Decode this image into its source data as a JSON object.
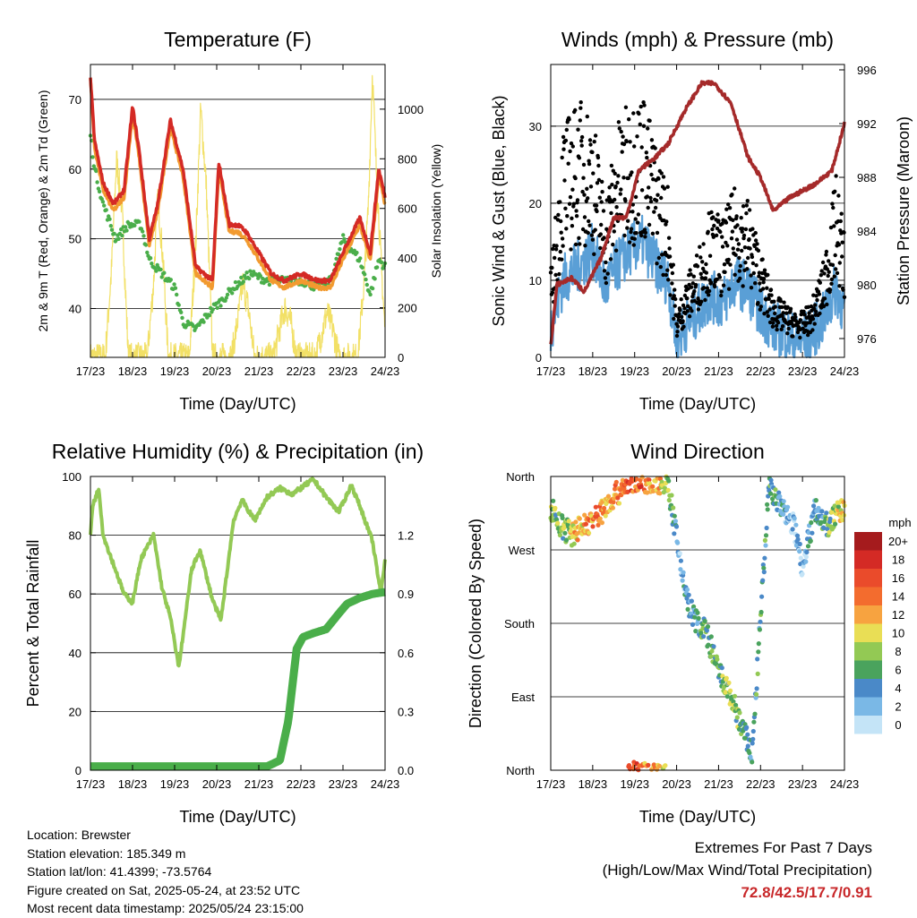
{
  "chart_data": [
    {
      "type": "line",
      "title": "Temperature (F)",
      "xlabel": "Time (Day/UTC)",
      "ylabel": "2m & 9m T (Red, Orange) & 2m Td (Green)",
      "y2label": "Solar Insolation (Yellow)",
      "x_ticks": [
        "17/23",
        "18/23",
        "19/23",
        "20/23",
        "21/23",
        "22/23",
        "23/23",
        "24/23"
      ],
      "y_ticks": [
        40,
        50,
        60,
        70
      ],
      "y2_ticks": [
        0,
        200,
        400,
        600,
        800,
        1000
      ],
      "ylim": [
        33,
        75
      ],
      "y2lim": [
        0,
        1180
      ],
      "colors": {
        "t2m": "#d42a25",
        "t9m": "#f29a2f",
        "td": "#4aae4a",
        "solar": "#f2e066"
      },
      "series": [
        {
          "name": "2m T",
          "x": [
            0,
            0.1,
            0.3,
            0.55,
            0.8,
            1.0,
            1.15,
            1.4,
            1.6,
            1.9,
            2.2,
            2.5,
            2.9,
            3.05,
            3.3,
            3.5,
            3.7,
            3.9,
            4.3,
            4.6,
            5.0,
            5.4,
            5.7,
            6.0,
            6.4,
            6.65,
            6.85,
            7.0
          ],
          "y": [
            73,
            64,
            58,
            55,
            57,
            69,
            63,
            50,
            55,
            67,
            60,
            46,
            44,
            61,
            52,
            52,
            51,
            49,
            45,
            44,
            45,
            44,
            44,
            48,
            53,
            48,
            60,
            56
          ]
        },
        {
          "name": "9m T",
          "x": [
            0,
            0.1,
            0.3,
            0.55,
            0.8,
            1.0,
            1.15,
            1.4,
            1.6,
            1.9,
            2.2,
            2.5,
            2.9,
            3.05,
            3.3,
            3.5,
            3.7,
            3.9,
            4.3,
            4.6,
            5.0,
            5.4,
            5.7,
            6.0,
            6.4,
            6.65,
            6.85,
            7.0
          ],
          "y": [
            73,
            63,
            57,
            54,
            56,
            68,
            62,
            49,
            54,
            66,
            59,
            45,
            43,
            60,
            51,
            51,
            50,
            48,
            44,
            43,
            44,
            43,
            43,
            47,
            52,
            47,
            59,
            55
          ]
        },
        {
          "name": "2m Td",
          "x": [
            0,
            0.1,
            0.3,
            0.6,
            0.9,
            1.2,
            1.4,
            1.7,
            2.0,
            2.2,
            2.5,
            2.9,
            3.1,
            3.4,
            3.6,
            3.8,
            4.2,
            4.5,
            5.0,
            5.4,
            5.7,
            6.0,
            6.4,
            6.65,
            6.85,
            7.0
          ],
          "y": [
            65,
            60,
            55,
            50,
            52,
            52,
            47,
            45,
            43,
            38,
            37,
            40,
            41,
            43,
            44,
            45,
            44,
            44,
            44,
            43,
            44,
            50,
            47,
            42,
            47,
            46
          ]
        },
        {
          "name": "Solar",
          "x": [
            0,
            0.35,
            0.5,
            0.62,
            0.75,
            0.9,
            1.35,
            1.5,
            1.6,
            1.72,
            1.85,
            2.35,
            2.5,
            2.62,
            2.75,
            2.9,
            3.35,
            3.5,
            3.62,
            3.75,
            3.9,
            4.35,
            4.5,
            4.62,
            4.75,
            4.9,
            5.35,
            5.5,
            5.62,
            5.75,
            5.9,
            6.35,
            6.5,
            6.6,
            6.7,
            6.78,
            6.9,
            7.0
          ],
          "y": [
            0,
            0,
            350,
            800,
            600,
            0,
            0,
            300,
            650,
            400,
            0,
            0,
            450,
            1000,
            700,
            0,
            0,
            150,
            300,
            200,
            0,
            0,
            120,
            200,
            150,
            0,
            0,
            100,
            180,
            120,
            0,
            0,
            300,
            600,
            1150,
            800,
            400,
            100
          ]
        }
      ]
    },
    {
      "type": "scatter",
      "title": "Winds (mph) & Pressure (mb)",
      "xlabel": "Time (Day/UTC)",
      "ylabel": "Sonic Wind & Gust (Blue, Black)",
      "y2label": "Station Pressure (Maroon)",
      "x_ticks": [
        "17/23",
        "18/23",
        "19/23",
        "20/23",
        "21/23",
        "22/23",
        "23/23",
        "24/23"
      ],
      "y_ticks": [
        0,
        10,
        20,
        30
      ],
      "y2_ticks": [
        976,
        980,
        984,
        988,
        992,
        996
      ],
      "ylim": [
        0,
        38
      ],
      "y2lim": [
        974.6,
        996.4
      ],
      "colors": {
        "wind": "#5a9fd6",
        "gust": "#000000",
        "pressure": "#a52a2a"
      },
      "series": [
        {
          "name": "Wind",
          "x": [
            0,
            0.3,
            0.7,
            1.0,
            1.3,
            1.6,
            1.9,
            2.2,
            2.5,
            2.8,
            3.0,
            3.2,
            3.5,
            3.8,
            4.1,
            4.4,
            4.7,
            5.0,
            5.3,
            5.6,
            5.9,
            6.2,
            6.5,
            6.8,
            7.0
          ],
          "y": [
            4,
            10,
            12,
            14,
            9,
            12,
            14,
            15,
            12,
            10,
            2,
            4,
            6,
            8,
            7,
            10,
            9,
            6,
            4,
            3,
            2,
            3,
            5,
            9,
            6
          ]
        },
        {
          "name": "Gust",
          "x": [
            0,
            0.3,
            0.7,
            1.0,
            1.3,
            1.6,
            1.9,
            2.2,
            2.5,
            2.8,
            3.0,
            3.2,
            3.5,
            3.8,
            4.1,
            4.4,
            4.7,
            5.0,
            5.3,
            5.6,
            5.9,
            6.2,
            6.5,
            6.8,
            7.0
          ],
          "y": [
            8,
            22,
            24,
            23,
            15,
            22,
            24,
            25,
            20,
            16,
            4,
            7,
            10,
            14,
            13,
            16,
            15,
            10,
            6,
            5,
            4,
            5,
            9,
            17,
            12
          ]
        },
        {
          "name": "Pressure",
          "x": [
            0,
            0.15,
            0.5,
            0.8,
            1.2,
            1.5,
            1.8,
            2.1,
            2.5,
            2.8,
            3.2,
            3.6,
            3.9,
            4.3,
            4.7,
            5.0,
            5.3,
            5.7,
            6.0,
            6.3,
            6.7,
            7.0
          ],
          "y": [
            975.5,
            980,
            980.5,
            979.5,
            982,
            985,
            985,
            988.5,
            989.5,
            990.5,
            993,
            995,
            995,
            993.5,
            989.5,
            988,
            985.5,
            986.5,
            987,
            987.5,
            988.5,
            992
          ]
        }
      ]
    },
    {
      "type": "line",
      "title": "Relative Humidity (%) & Precipitation (in)",
      "xlabel": "Time (Day/UTC)",
      "ylabel": "Percent & Total Rainfall",
      "x_ticks": [
        "17/23",
        "18/23",
        "19/23",
        "20/23",
        "21/23",
        "22/23",
        "23/23",
        "24/23"
      ],
      "y_ticks": [
        0,
        20,
        40,
        60,
        80,
        100
      ],
      "y2_ticks": [
        "0.0",
        "0.3",
        "0.6",
        "0.9",
        "1.2"
      ],
      "ylim": [
        0,
        100
      ],
      "y2lim": [
        0,
        1.5
      ],
      "colors": {
        "rh": "#93c955",
        "precip": "#4aae4a"
      },
      "series": [
        {
          "name": "RH",
          "x": [
            0,
            0.05,
            0.2,
            0.3,
            0.5,
            0.8,
            1.0,
            1.2,
            1.5,
            1.7,
            1.9,
            2.1,
            2.4,
            2.6,
            2.9,
            3.1,
            3.4,
            3.6,
            3.9,
            4.2,
            4.5,
            4.8,
            5.1,
            5.3,
            5.6,
            5.9,
            6.2,
            6.4,
            6.7,
            6.9,
            7.0
          ],
          "y": [
            80,
            90,
            96,
            80,
            72,
            60,
            57,
            72,
            80,
            62,
            52,
            35,
            68,
            75,
            58,
            51,
            85,
            92,
            85,
            93,
            96,
            94,
            97,
            99,
            93,
            88,
            97,
            90,
            78,
            60,
            72
          ]
        },
        {
          "name": "Precipitation",
          "x": [
            0,
            4.2,
            4.5,
            4.7,
            4.9,
            5.05,
            5.3,
            5.6,
            5.9,
            6.1,
            6.4,
            6.7,
            7.0
          ],
          "y": [
            0.02,
            0.02,
            0.05,
            0.25,
            0.62,
            0.68,
            0.7,
            0.72,
            0.8,
            0.85,
            0.88,
            0.9,
            0.91
          ]
        }
      ]
    },
    {
      "type": "scatter",
      "title": "Wind Direction",
      "xlabel": "Time (Day/UTC)",
      "ylabel": "Direction (Colored By Speed)",
      "x_ticks": [
        "17/23",
        "18/23",
        "19/23",
        "20/23",
        "21/23",
        "22/23",
        "23/23",
        "24/23"
      ],
      "y_ticks": [
        "North",
        "East",
        "South",
        "West",
        "North"
      ],
      "ylim": [
        0,
        360
      ],
      "legend": {
        "title": "mph",
        "labels": [
          "20+",
          "18",
          "16",
          "14",
          "12",
          "10",
          "8",
          "6",
          "4",
          "2",
          "0"
        ],
        "colors": [
          "#a51b1d",
          "#d42a25",
          "#ea4b2b",
          "#f36c2e",
          "#f7a340",
          "#e9de55",
          "#93c954",
          "#4aa35d",
          "#4a89c8",
          "#7ab8e6",
          "#c4e4f7"
        ]
      },
      "series": [
        {
          "name": "Direction",
          "x": [
            0.05,
            0.2,
            0.5,
            0.8,
            1.1,
            1.4,
            1.7,
            1.9,
            2.2,
            2.5,
            2.8,
            3.1,
            3.3,
            3.5,
            3.7,
            4.0,
            4.3,
            4.5,
            4.8,
            5.2,
            5.5,
            5.8,
            6.0,
            6.3,
            6.6,
            6.9
          ],
          "y": [
            320,
            300,
            290,
            300,
            310,
            330,
            345,
            355,
            355,
            355,
            350,
            250,
            200,
            180,
            170,
            120,
            90,
            60,
            20,
            350,
            320,
            300,
            250,
            320,
            300,
            320
          ],
          "speed": [
            8,
            6,
            10,
            12,
            14,
            12,
            14,
            16,
            14,
            12,
            8,
            2,
            4,
            4,
            6,
            6,
            8,
            6,
            4,
            6,
            4,
            2,
            2,
            4,
            6,
            10
          ]
        }
      ]
    }
  ],
  "info": {
    "location": "Location: Brewster",
    "elevation": "Station elevation: 185.349 m",
    "latlon": "Station lat/lon: 41.4399; -73.5764",
    "created": "Figure created on Sat, 2025-05-24, at 23:52 UTC",
    "recent": "Most recent data timestamp: 2025/05/24 23:15:00"
  },
  "extremes": {
    "title": "Extremes For Past 7 Days",
    "subtitle": "(High/Low/Max Wind/Total Precipitation)",
    "values": "72.8/42.5/17.7/0.91"
  }
}
